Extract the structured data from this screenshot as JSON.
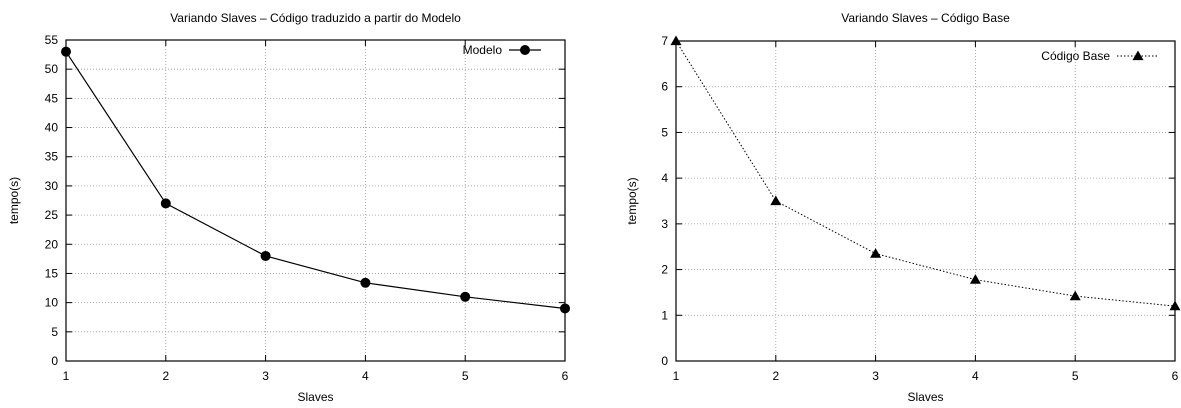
{
  "chart_data": [
    {
      "type": "line",
      "title": "Variando Slaves – Código traduzido a partir do Modelo",
      "xlabel": "Slaves",
      "ylabel": "tempo(s)",
      "x": [
        1,
        2,
        3,
        4,
        5,
        6
      ],
      "xlim": [
        1,
        6
      ],
      "ylim": [
        0,
        55
      ],
      "xticks": [
        "1",
        "2",
        "3",
        "4",
        "5",
        "6"
      ],
      "yticks": [
        "0",
        "5",
        "10",
        "15",
        "20",
        "25",
        "30",
        "35",
        "40",
        "45",
        "50",
        "55"
      ],
      "grid": true,
      "legend_position": "top-right",
      "series": [
        {
          "name": "Modelo",
          "values": [
            53,
            27,
            18,
            13.4,
            11,
            9
          ],
          "line_style": "solid",
          "marker": "circle"
        }
      ]
    },
    {
      "type": "line",
      "title": "Variando Slaves – Código Base",
      "xlabel": "Slaves",
      "ylabel": "tempo(s)",
      "x": [
        1,
        2,
        3,
        4,
        5,
        6
      ],
      "xlim": [
        1,
        6
      ],
      "ylim": [
        0,
        7
      ],
      "xticks": [
        "1",
        "2",
        "3",
        "4",
        "5",
        "6"
      ],
      "yticks": [
        "0",
        "1",
        "2",
        "3",
        "4",
        "5",
        "6",
        "7"
      ],
      "grid": true,
      "legend_position": "top-right",
      "series": [
        {
          "name": "Código Base",
          "values": [
            7,
            3.5,
            2.35,
            1.78,
            1.42,
            1.2
          ],
          "line_style": "dotted",
          "marker": "triangle"
        }
      ]
    }
  ]
}
